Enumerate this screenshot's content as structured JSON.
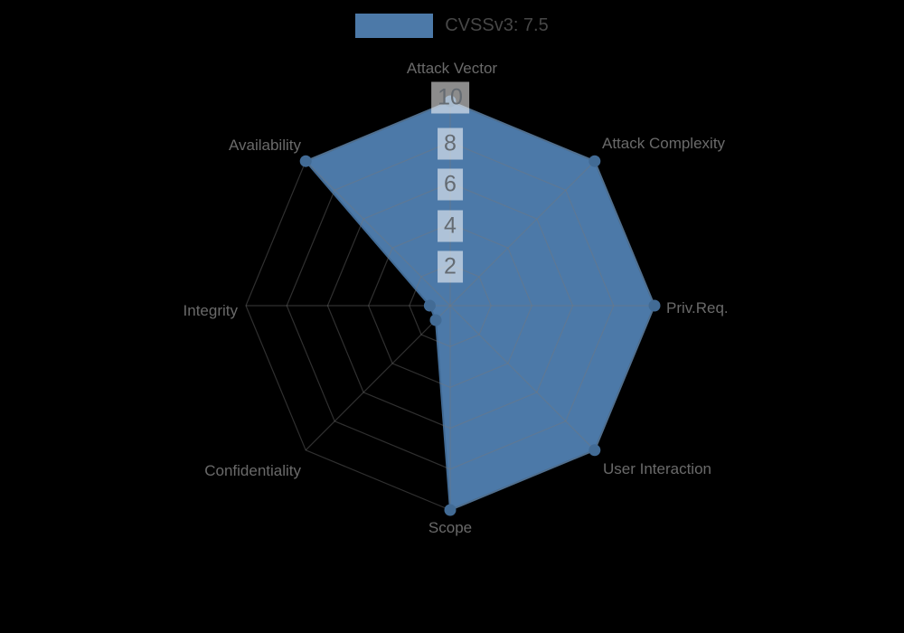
{
  "chart_data": {
    "type": "radar",
    "legend": {
      "label": "CVSSv3: 7.5",
      "position": "top"
    },
    "axes": [
      "Attack Vector",
      "Attack Complexity",
      "Priv.Req.",
      "User Interaction",
      "Scope",
      "Confidentiality",
      "Integrity",
      "Availability"
    ],
    "series": [
      {
        "name": "CVSSv3: 7.5",
        "values": [
          10,
          10,
          10,
          10,
          10,
          1,
          1,
          10
        ]
      }
    ],
    "ticks": [
      2,
      4,
      6,
      8,
      10
    ],
    "scale_min": 0,
    "scale_max": 10,
    "grid": true,
    "grid_shape": "polygon-web",
    "colors": {
      "fill": "#4c79a8",
      "border": "#426b95",
      "point": "#426b95",
      "grid": "rgba(120,120,120,0.4)",
      "axis_label": "#6a6a6a",
      "tick_text": "#646b72",
      "tick_backdrop": "rgba(255,255,255,0.55)",
      "legend_text": "#474747",
      "background": "#000000"
    }
  }
}
